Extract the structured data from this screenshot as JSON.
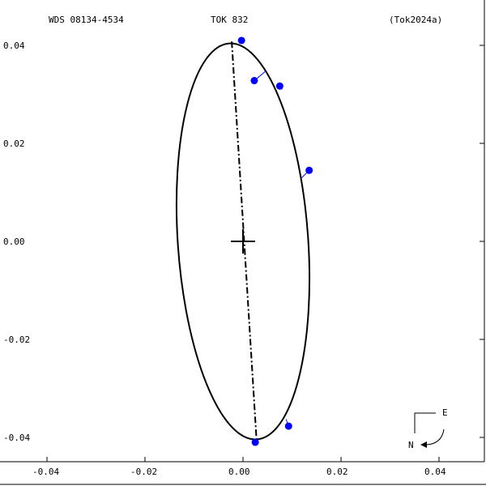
{
  "header": {
    "wds_id": "WDS 08134-4534",
    "discoverer": "TOK 832",
    "reference": "(Tok2024a)"
  },
  "compass": {
    "east_label": "E",
    "north_label": "N"
  },
  "colors": {
    "orbit": "#000000",
    "observations": "#0000ff",
    "residuals": "#0000ff",
    "axes": "#000000",
    "background": "#ffffff"
  },
  "chart_data": {
    "type": "scatter",
    "title": "TOK 832",
    "xlabel": "",
    "ylabel": "",
    "xlim": [
      -0.049,
      0.049
    ],
    "ylim": [
      -0.0465,
      0.0465
    ],
    "grid": false,
    "x_ticks": [
      {
        "value": -0.04,
        "label": "-0.04"
      },
      {
        "value": -0.02,
        "label": "-0.02"
      },
      {
        "value": 0.0,
        "label": "0.00"
      },
      {
        "value": 0.02,
        "label": "0.02"
      },
      {
        "value": 0.04,
        "label": "0.04"
      }
    ],
    "y_ticks": [
      {
        "value": 0.04,
        "label": "0.04"
      },
      {
        "value": 0.02,
        "label": "0.02"
      },
      {
        "value": 0.0,
        "label": "0.00"
      },
      {
        "value": -0.02,
        "label": "-0.02"
      },
      {
        "value": -0.04,
        "label": "-0.04"
      }
    ],
    "orbit": {
      "center": [
        0.0,
        0.0
      ],
      "semi_axes": [
        0.0133,
        0.0405
      ],
      "rotation_deg": 4
    },
    "line_of_nodes": [
      [
        -0.0023,
        0.0408
      ],
      [
        0.0028,
        -0.0411
      ]
    ],
    "primary": [
      0.0,
      0.0
    ],
    "series": [
      {
        "points": [
          {
            "x": -0.0003,
            "y": 0.041,
            "model_x": -0.0003,
            "model_y": 0.041
          },
          {
            "x": 0.0023,
            "y": 0.0328,
            "model_x": 0.0047,
            "model_y": 0.0348
          },
          {
            "x": 0.0075,
            "y": 0.0317,
            "model_x": 0.008,
            "model_y": 0.031
          },
          {
            "x": 0.0135,
            "y": 0.0145,
            "model_x": 0.012,
            "model_y": 0.013
          },
          {
            "x": 0.0093,
            "y": -0.0377,
            "model_x": 0.0088,
            "model_y": -0.0363
          },
          {
            "x": 0.0025,
            "y": -0.041,
            "model_x": 0.0025,
            "model_y": -0.041
          }
        ]
      }
    ]
  }
}
